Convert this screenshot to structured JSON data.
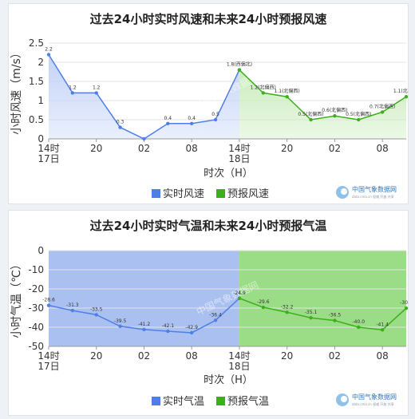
{
  "charts": {
    "wind": {
      "title": "过去24小时实时风速和未来24小时预报风速",
      "ylabel": "小时风速（m/s）",
      "xlabel": "时次（H）",
      "legend_observed": "实时风速",
      "legend_forecast": "预报风速",
      "watermark": "中国气象数据网",
      "logo_text": "中国气象数据网",
      "logo_subtext": "data.cma.cn 权威 开放 共享",
      "x_tick_labels": [
        {
          "idx": 0,
          "lines": [
            "14时",
            "17日"
          ]
        },
        {
          "idx": 2,
          "lines": [
            "20"
          ]
        },
        {
          "idx": 4,
          "lines": [
            "02"
          ]
        },
        {
          "idx": 6,
          "lines": [
            "08"
          ]
        },
        {
          "idx": 8,
          "lines": [
            "14时",
            "18日"
          ]
        },
        {
          "idx": 10,
          "lines": [
            "20"
          ]
        },
        {
          "idx": 12,
          "lines": [
            "02"
          ]
        },
        {
          "idx": 14,
          "lines": [
            "08"
          ]
        }
      ],
      "y_ticks": [
        "2.5",
        "2",
        "1.5",
        "1",
        "0.5",
        "0"
      ]
    },
    "temp": {
      "title": "过去24小时实时气温和未来24小时预报气温",
      "ylabel": "小时气温（℃）",
      "xlabel": "时次（H）",
      "legend_observed": "实时气温",
      "legend_forecast": "预报气温",
      "watermark": "中国气象数据网",
      "logo_text": "中国气象数据网",
      "logo_subtext": "data.cma.cn 权威 开放 共享",
      "x_tick_labels": [
        {
          "idx": 0,
          "lines": [
            "14时",
            "17日"
          ]
        },
        {
          "idx": 2,
          "lines": [
            "20"
          ]
        },
        {
          "idx": 4,
          "lines": [
            "02"
          ]
        },
        {
          "idx": 6,
          "lines": [
            "08"
          ]
        },
        {
          "idx": 8,
          "lines": [
            "14时",
            "18日"
          ]
        },
        {
          "idx": 10,
          "lines": [
            "20"
          ]
        },
        {
          "idx": 12,
          "lines": [
            "02"
          ]
        },
        {
          "idx": 14,
          "lines": [
            "08"
          ]
        }
      ],
      "y_ticks": [
        "0",
        "-10",
        "-20",
        "-30",
        "-40",
        "-50"
      ]
    }
  },
  "chart_data": [
    {
      "type": "area",
      "title": "过去24小时实时风速和未来24小时预报风速",
      "xlabel": "时次（H）",
      "ylabel": "小时风速（m/s）",
      "ylim": [
        0,
        2.5
      ],
      "grid": true,
      "legend_position": "bottom",
      "series": [
        {
          "name": "实时风速",
          "color": "#4f7fe6",
          "fill": "#c3d3f7",
          "x": [
            0,
            1,
            2,
            3,
            4,
            5,
            6,
            7,
            8
          ],
          "values": [
            2.2,
            1.2,
            1.2,
            0.3,
            0.0,
            0.4,
            0.4,
            0.5,
            1.8
          ],
          "labels": [
            "2.2",
            "1.2",
            "1.2",
            "0.3",
            "",
            "0.4",
            "0.4",
            "0.5",
            "1.8(西偏北)"
          ]
        },
        {
          "name": "预报风速",
          "color": "#3cb01a",
          "fill": "#c9ecbb",
          "x": [
            8,
            9,
            10,
            11,
            12,
            13,
            14,
            15
          ],
          "values": [
            1.8,
            1.2,
            1.1,
            0.5,
            0.6,
            0.5,
            0.7,
            1.1
          ],
          "labels": [
            "",
            "1.2(北偏西)",
            "1.1(北偏西)",
            "0.5(北偏西)",
            "0.6(北偏西)",
            "0.5(北偏西)",
            "0.7(北偏西)",
            "1.1(北偏西)"
          ]
        }
      ]
    },
    {
      "type": "area",
      "title": "过去24小时实时气温和未来24小时预报气温",
      "xlabel": "时次（H）",
      "ylabel": "小时气温（℃）",
      "ylim": [
        -50,
        0
      ],
      "grid": true,
      "legend_position": "bottom",
      "series": [
        {
          "name": "实时气温",
          "color": "#4f7fe6",
          "fill": "#a9c0f1",
          "x": [
            0,
            1,
            2,
            3,
            4,
            5,
            6,
            7,
            8
          ],
          "values": [
            -28.6,
            -31.3,
            -33.5,
            -39.5,
            -41.2,
            -42.1,
            -42.9,
            -36.4,
            -24.9
          ],
          "labels": [
            "-28.6",
            "-31.3",
            "-33.5",
            "-39.5",
            "-41.2",
            "-42.1",
            "-42.9",
            "-36.4",
            "-24.9"
          ]
        },
        {
          "name": "预报气温",
          "color": "#3cb01a",
          "fill": "#9bdc86",
          "x": [
            8,
            9,
            10,
            11,
            12,
            13,
            14,
            15
          ],
          "values": [
            -24.9,
            -29.6,
            -32.2,
            -35.1,
            -36.5,
            -40.0,
            -41.4,
            -30.1
          ],
          "labels": [
            "",
            "-29.6",
            "-32.2",
            "-35.1",
            "-36.5",
            "-40.0",
            "-41.4",
            "-30.1"
          ]
        }
      ]
    }
  ]
}
